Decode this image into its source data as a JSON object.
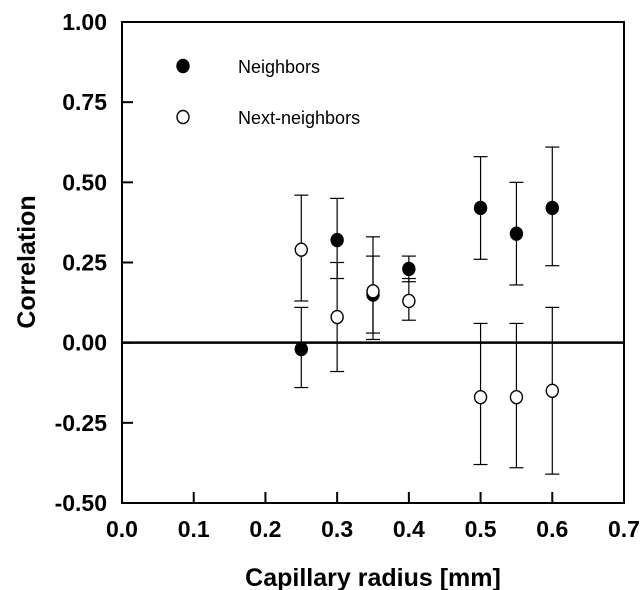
{
  "chart_data": {
    "type": "scatter",
    "xlabel": "Capillary radius [mm]",
    "ylabel": "Correlation",
    "xlim": [
      0.0,
      0.7
    ],
    "ylim": [
      -0.5,
      1.0
    ],
    "x_ticks": [
      "0.0",
      "0.1",
      "0.2",
      "0.3",
      "0.4",
      "0.5",
      "0.6",
      "0.7"
    ],
    "y_ticks": [
      "-0.50",
      "-0.25",
      "0.00",
      "0.25",
      "0.50",
      "0.75",
      "1.00"
    ],
    "grid": false,
    "zero_line": true,
    "legend_position": "top-left",
    "series": [
      {
        "name": "Neighbors",
        "marker": "filled-circle",
        "color": "#000000",
        "points": [
          {
            "x": 0.25,
            "y": -0.02,
            "err_low": -0.14,
            "err_high": 0.11
          },
          {
            "x": 0.3,
            "y": 0.32,
            "err_low": 0.2,
            "err_high": 0.45
          },
          {
            "x": 0.35,
            "y": 0.15,
            "err_low": 0.03,
            "err_high": 0.27
          },
          {
            "x": 0.4,
            "y": 0.23,
            "err_low": 0.19,
            "err_high": 0.27
          },
          {
            "x": 0.5,
            "y": 0.42,
            "err_low": 0.26,
            "err_high": 0.58
          },
          {
            "x": 0.55,
            "y": 0.34,
            "err_low": 0.18,
            "err_high": 0.5
          },
          {
            "x": 0.6,
            "y": 0.42,
            "err_low": 0.24,
            "err_high": 0.61
          }
        ]
      },
      {
        "name": "Next-neighbors",
        "marker": "open-circle",
        "color": "#000000",
        "points": [
          {
            "x": 0.25,
            "y": 0.29,
            "err_low": 0.13,
            "err_high": 0.46
          },
          {
            "x": 0.3,
            "y": 0.08,
            "err_low": -0.09,
            "err_high": 0.25
          },
          {
            "x": 0.35,
            "y": 0.16,
            "err_low": 0.01,
            "err_high": 0.33
          },
          {
            "x": 0.4,
            "y": 0.13,
            "err_low": 0.07,
            "err_high": 0.2
          },
          {
            "x": 0.5,
            "y": -0.17,
            "err_low": -0.38,
            "err_high": 0.06
          },
          {
            "x": 0.55,
            "y": -0.17,
            "err_low": -0.39,
            "err_high": 0.06
          },
          {
            "x": 0.6,
            "y": -0.15,
            "err_low": -0.41,
            "err_high": 0.11
          }
        ]
      }
    ]
  }
}
